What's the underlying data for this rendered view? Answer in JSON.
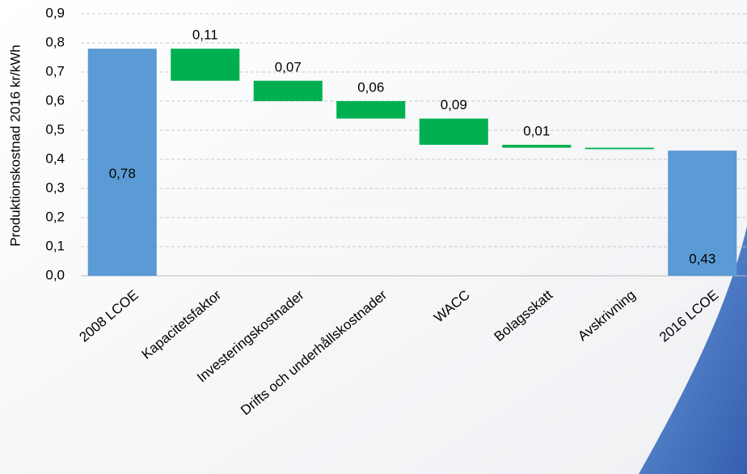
{
  "chart_data": {
    "type": "waterfall",
    "y_label": "Produktionskostnad 2016 kr/kWh",
    "categories": [
      "2008 LCOE",
      "Kapacitetsfaktor",
      "Investeringskostnader",
      "Drifts och underhållskostnader",
      "WACC",
      "Bolagsskatt",
      "Avskrivning",
      "2016 LCOE"
    ],
    "values": [
      0.78,
      0.11,
      0.07,
      0.06,
      0.09,
      0.01,
      0.005,
      0.43
    ],
    "value_labels": [
      "0,78",
      "0,11",
      "0,07",
      "0,06",
      "0,09",
      "0,01",
      null,
      "0,43"
    ],
    "kinds": [
      "total",
      "decrease",
      "decrease",
      "decrease",
      "decrease",
      "decrease",
      "decrease",
      "total"
    ],
    "total_color": "#5b9bd5",
    "change_color": "#00b050",
    "ylim": [
      0,
      0.9
    ],
    "yticks": [
      {
        "value": 0,
        "label": "0,0"
      },
      {
        "value": 0.1,
        "label": "0,1"
      },
      {
        "value": 0.2,
        "label": "0,2"
      },
      {
        "value": 0.3,
        "label": "0,3"
      },
      {
        "value": 0.4,
        "label": "0,4"
      },
      {
        "value": 0.5,
        "label": "0,5"
      },
      {
        "value": 0.6,
        "label": "0,6"
      },
      {
        "value": 0.7,
        "label": "0,7"
      },
      {
        "value": 0.8,
        "label": "0,8"
      },
      {
        "value": 0.9,
        "label": "0,9"
      }
    ],
    "grid": true
  }
}
